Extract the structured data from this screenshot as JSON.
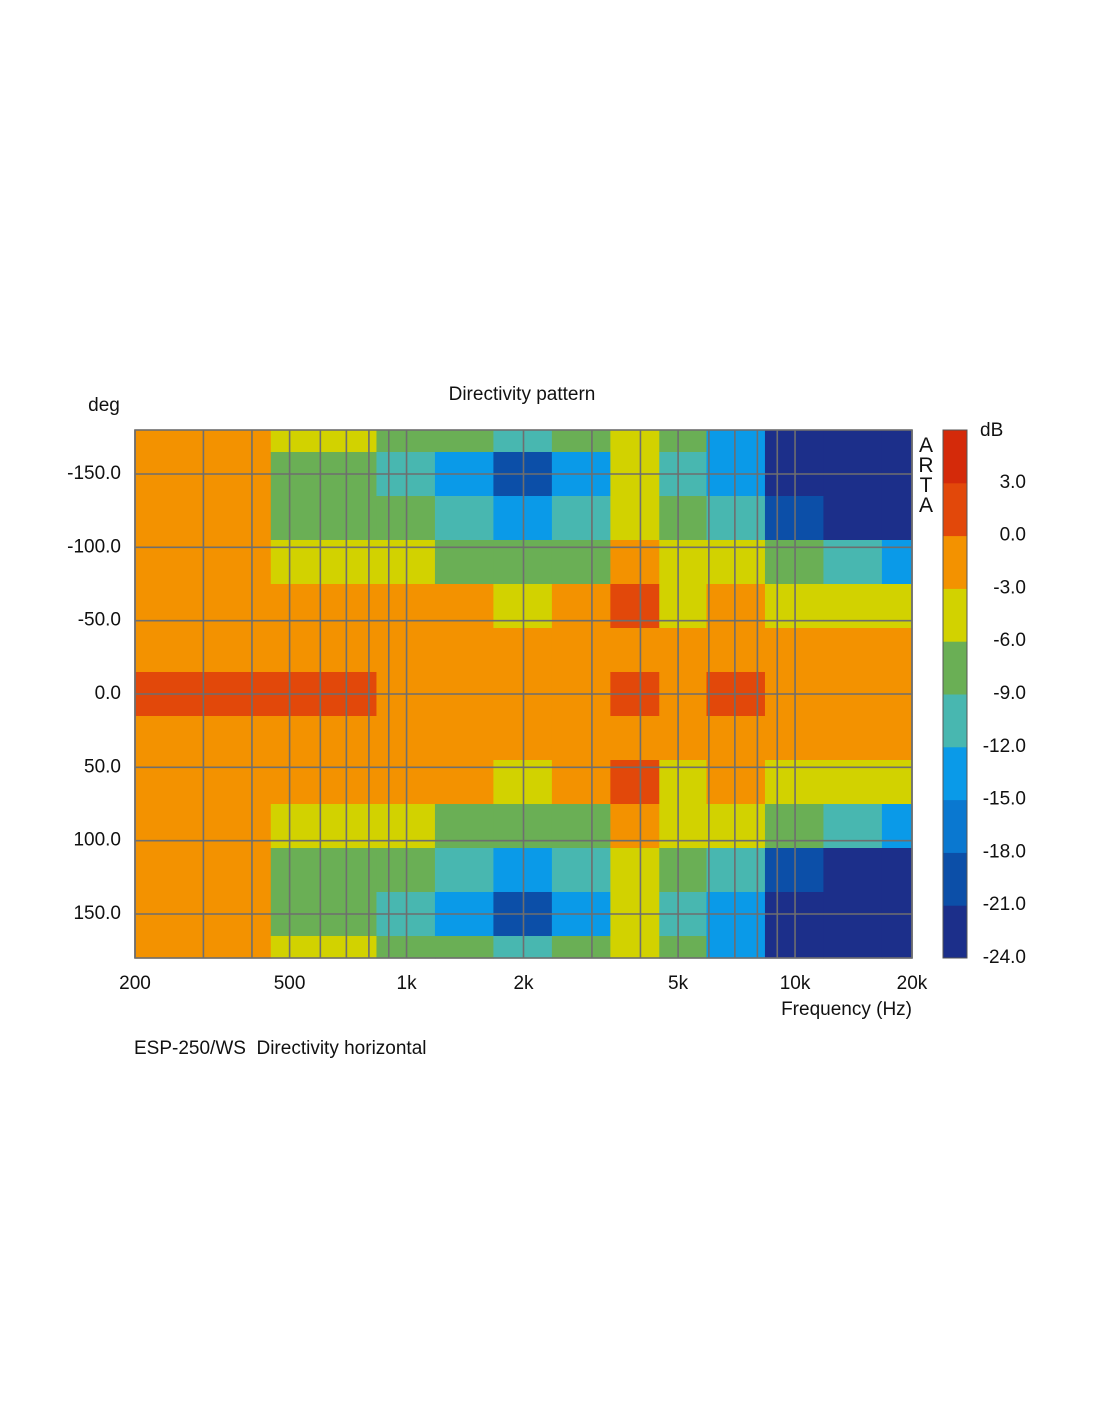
{
  "chart_data": {
    "type": "contour",
    "title": "Directivity pattern",
    "y_label": "deg",
    "x_label": "Frequency (Hz)",
    "colorbar_label": "dB",
    "watermark": "ARTA",
    "footer": "ESP-250/WS  Directivity horizontal",
    "x_log": true,
    "grid": true,
    "xlim": [
      200,
      20000
    ],
    "ylim": [
      -180,
      180
    ],
    "xticks": [
      {
        "value": 200,
        "label": "200"
      },
      {
        "value": 500,
        "label": "500"
      },
      {
        "value": 1000,
        "label": "1k"
      },
      {
        "value": 2000,
        "label": "2k"
      },
      {
        "value": 5000,
        "label": "5k"
      },
      {
        "value": 10000,
        "label": "10k"
      },
      {
        "value": 20000,
        "label": "20k"
      }
    ],
    "x_minor_grid": [
      300,
      400,
      600,
      700,
      800,
      900,
      3000,
      4000,
      6000,
      7000,
      8000,
      9000
    ],
    "yticks": [
      {
        "value": -150,
        "label": "-150.0"
      },
      {
        "value": -100,
        "label": "-100.0"
      },
      {
        "value": -50,
        "label": "-50.0"
      },
      {
        "value": 0,
        "label": "0.0"
      },
      {
        "value": 50,
        "label": "50.0"
      },
      {
        "value": 100,
        "label": "100.0"
      },
      {
        "value": 150,
        "label": "150.0"
      }
    ],
    "levels": [
      -24,
      -21,
      -18,
      -15,
      -12,
      -9,
      -6,
      -3,
      0,
      3,
      6
    ],
    "colors": [
      "#1c2f8a",
      "#0c4fa8",
      "#0a78d0",
      "#0a9ae8",
      "#48b7b0",
      "#6aaf55",
      "#d2d200",
      "#f39200",
      "#e2480a",
      "#d42a0a",
      "#7a0a0a"
    ],
    "colorbar_ticks": [
      {
        "value": 3,
        "label": "3.0"
      },
      {
        "value": 0,
        "label": "0.0"
      },
      {
        "value": -3,
        "label": "-3.0"
      },
      {
        "value": -6,
        "label": "-6.0"
      },
      {
        "value": -9,
        "label": "-9.0"
      },
      {
        "value": -12,
        "label": "-12.0"
      },
      {
        "value": -15,
        "label": "-15.0"
      },
      {
        "value": -18,
        "label": "-18.0"
      },
      {
        "value": -21,
        "label": "-21.0"
      },
      {
        "value": -24,
        "label": "-24.0"
      }
    ],
    "x": [
      200,
      300,
      400,
      500,
      700,
      1000,
      1400,
      2000,
      2800,
      4000,
      5000,
      7000,
      10000,
      14000,
      20000
    ],
    "y": [
      -180,
      -150,
      -120,
      -90,
      -60,
      -30,
      0,
      30,
      60,
      90,
      120,
      150,
      180
    ],
    "z": [
      [
        -1.5,
        -1.5,
        -2.5,
        -5,
        -6,
        -8,
        -9,
        -10,
        -9,
        -4,
        -9,
        -13,
        -22,
        -23,
        -23
      ],
      [
        -1.5,
        -1.5,
        -2.5,
        -7,
        -8,
        -11,
        -13,
        -19,
        -14,
        -6,
        -12,
        -15,
        -23,
        -23,
        -23
      ],
      [
        -1.5,
        -1.5,
        -2.5,
        -6.5,
        -7.5,
        -9,
        -10.5,
        -12.5,
        -11,
        -5,
        -8,
        -11,
        -19,
        -22,
        -22
      ],
      [
        -1.5,
        -1.5,
        -2,
        -3.5,
        -4,
        -5,
        -6.5,
        -8,
        -7,
        -2,
        -4,
        -5,
        -9,
        -11,
        -13
      ],
      [
        -1.5,
        -1.5,
        -1.5,
        -1.5,
        -2,
        -2,
        -2,
        -3.5,
        -2.5,
        1.5,
        -4,
        -2,
        -4,
        -5,
        -6
      ],
      [
        -1,
        -1,
        -1,
        -1,
        -1,
        -1,
        -1,
        -1,
        -1,
        -0.5,
        -1,
        -1,
        -1.5,
        -2,
        -2
      ],
      [
        0.5,
        0.5,
        0.5,
        0.5,
        0.3,
        -0.5,
        -1,
        -1,
        -0.5,
        0.5,
        -1,
        0.5,
        -1,
        -1.5,
        -1.5
      ],
      [
        -1,
        -1,
        -1,
        -1,
        -1,
        -1,
        -1,
        -1,
        -1,
        -0.5,
        -1,
        -1,
        -1.5,
        -2,
        -2
      ],
      [
        -1.5,
        -1.5,
        -1.5,
        -1.5,
        -2,
        -2,
        -2,
        -3.5,
        -2.5,
        1.5,
        -4,
        -2,
        -4,
        -5,
        -6
      ],
      [
        -1.5,
        -1.5,
        -2,
        -3.5,
        -4,
        -5,
        -6.5,
        -8,
        -7,
        -2,
        -4,
        -5,
        -9,
        -11,
        -13
      ],
      [
        -1.5,
        -1.5,
        -2.5,
        -6.5,
        -7.5,
        -9,
        -10.5,
        -12.5,
        -11,
        -5,
        -8,
        -11,
        -19,
        -22,
        -22
      ],
      [
        -1.5,
        -1.5,
        -2.5,
        -7,
        -8,
        -11,
        -13,
        -19,
        -14,
        -6,
        -12,
        -15,
        -23,
        -23,
        -23
      ],
      [
        -1.5,
        -1.5,
        -2.5,
        -5,
        -6,
        -8,
        -9,
        -10,
        -9,
        -4,
        -9,
        -13,
        -22,
        -23,
        -23
      ]
    ]
  }
}
